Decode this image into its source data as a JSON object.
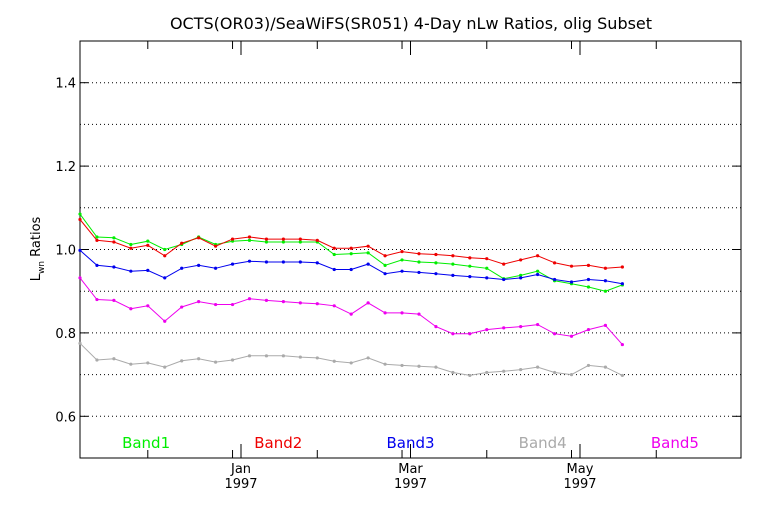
{
  "chart_data": {
    "type": "line",
    "title": "OCTS(OR03)/SeaWiFS(SR051) 4-Day nLw Ratios, olig Subset",
    "ylabel": {
      "main": "L",
      "sub": "wn",
      "rest": " Ratios"
    },
    "xlabel": "",
    "ylim": [
      0.5,
      1.5
    ],
    "xlim": [
      0,
      39
    ],
    "grid": "y-dotted",
    "legend_placement": "bottom-inside",
    "y_ticks": [
      {
        "value": 0.6,
        "label": "0.6"
      },
      {
        "value": 0.8,
        "label": "0.8"
      },
      {
        "value": 1.0,
        "label": "1.0"
      },
      {
        "value": 1.2,
        "label": "1.2"
      },
      {
        "value": 1.4,
        "label": "1.4"
      }
    ],
    "y_gridlines": [
      0.6,
      0.7,
      0.8,
      0.9,
      1.0,
      1.1,
      1.2,
      1.3,
      1.4
    ],
    "x_minor_ticks": [
      4,
      9,
      14,
      19,
      24,
      29,
      34
    ],
    "x_ticks": [
      {
        "x": 9.5,
        "month": "Jan",
        "year": "1997"
      },
      {
        "x": 19.5,
        "month": "Mar",
        "year": "1997"
      },
      {
        "x": 29.5,
        "month": "May",
        "year": "1997"
      }
    ],
    "series": [
      {
        "name": "Band1",
        "color": "#00ee00",
        "values": [
          1.085,
          1.03,
          1.028,
          1.012,
          1.02,
          1.0,
          1.012,
          1.03,
          1.012,
          1.02,
          1.022,
          1.018,
          1.018,
          1.018,
          1.018,
          0.988,
          0.99,
          0.992,
          0.962,
          0.975,
          0.97,
          0.968,
          0.965,
          0.96,
          0.955,
          0.93,
          0.938,
          0.948,
          0.925,
          0.918,
          0.91,
          0.9,
          0.915
        ]
      },
      {
        "name": "Band2",
        "color": "#ee0000",
        "values": [
          1.072,
          1.022,
          1.018,
          1.003,
          1.01,
          0.985,
          1.015,
          1.028,
          1.008,
          1.025,
          1.03,
          1.025,
          1.025,
          1.025,
          1.022,
          1.003,
          1.003,
          1.008,
          0.985,
          0.995,
          0.99,
          0.988,
          0.985,
          0.98,
          0.978,
          0.965,
          0.975,
          0.985,
          0.968,
          0.96,
          0.962,
          0.955,
          0.958
        ]
      },
      {
        "name": "Band3",
        "color": "#0000ee",
        "values": [
          0.998,
          0.962,
          0.958,
          0.948,
          0.95,
          0.932,
          0.955,
          0.962,
          0.955,
          0.965,
          0.972,
          0.97,
          0.97,
          0.97,
          0.968,
          0.952,
          0.952,
          0.965,
          0.942,
          0.948,
          0.945,
          0.942,
          0.938,
          0.935,
          0.932,
          0.928,
          0.932,
          0.94,
          0.928,
          0.922,
          0.928,
          0.925,
          0.918
        ]
      },
      {
        "name": "Band4",
        "color": "#aaaaaa",
        "values": [
          0.775,
          0.735,
          0.738,
          0.725,
          0.728,
          0.718,
          0.733,
          0.738,
          0.73,
          0.735,
          0.745,
          0.745,
          0.745,
          0.742,
          0.74,
          0.732,
          0.728,
          0.74,
          0.725,
          0.722,
          0.72,
          0.718,
          0.705,
          0.698,
          0.705,
          0.708,
          0.712,
          0.718,
          0.705,
          0.7,
          0.722,
          0.718,
          0.698
        ]
      },
      {
        "name": "Band5",
        "color": "#ee00ee",
        "values": [
          0.932,
          0.88,
          0.878,
          0.858,
          0.865,
          0.828,
          0.862,
          0.875,
          0.868,
          0.868,
          0.882,
          0.878,
          0.875,
          0.872,
          0.87,
          0.865,
          0.845,
          0.872,
          0.848,
          0.848,
          0.845,
          0.815,
          0.798,
          0.798,
          0.808,
          0.812,
          0.815,
          0.82,
          0.798,
          0.792,
          0.808,
          0.818,
          0.772
        ]
      }
    ],
    "series_x": [
      0,
      1,
      2,
      3,
      4,
      5,
      6,
      7,
      8,
      9,
      10,
      11,
      12,
      13,
      14,
      15,
      16,
      17,
      18,
      19,
      20,
      21,
      22,
      23,
      24,
      25,
      26,
      27,
      28,
      29,
      30,
      31,
      32
    ]
  }
}
